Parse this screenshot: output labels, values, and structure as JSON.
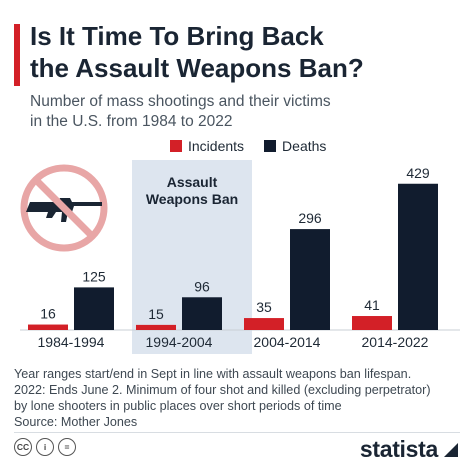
{
  "title_lines": [
    "Is It Time To Bring Back",
    "the Assault Weapons Ban?"
  ],
  "subtitle_lines": [
    "Number of mass shootings and their victims",
    "in the U.S. from 1984 to 2022"
  ],
  "legend": {
    "incidents": "Incidents",
    "deaths": "Deaths"
  },
  "colors": {
    "accent": "#d32027",
    "incidents": "#d32027",
    "deaths": "#111c2e",
    "highlight": "#dde5ef",
    "no_sign": "#e8a6a6"
  },
  "ban_label_lines": [
    "Assault",
    "Weapons Ban"
  ],
  "icon": "no-rifle-icon",
  "chart_data": {
    "type": "bar",
    "categories": [
      "1984-1994",
      "1994-2004",
      "2004-2014",
      "2014-2022"
    ],
    "series": [
      {
        "name": "Incidents",
        "values": [
          16,
          15,
          35,
          41
        ]
      },
      {
        "name": "Deaths",
        "values": [
          125,
          96,
          296,
          429
        ]
      }
    ],
    "ylim": [
      0,
      440
    ],
    "highlighted_category": "1994-2004",
    "data_labels": true
  },
  "notes_lines": [
    "Year ranges start/end in Sept in line with assault weapons ban lifespan.",
    "2022: Ends June 2. Minimum of four shot and killed (excluding perpetrator)",
    "by lone shooters in public places over short periods of time",
    "Source: Mother Jones"
  ],
  "footer": {
    "cc_icons": [
      "CC",
      "i",
      "="
    ],
    "brand": "statista"
  }
}
